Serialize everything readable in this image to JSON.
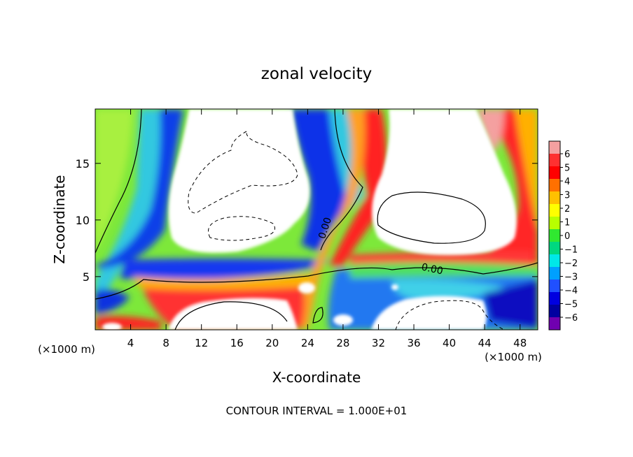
{
  "chart_data": {
    "type": "heatmap",
    "title": "zonal velocity",
    "xlabel": "X-coordinate",
    "ylabel": "Z-coordinate",
    "x_unit_left": "(×1000 m)",
    "x_unit_right": "(×1000 m)",
    "xlim": [
      0,
      50
    ],
    "ylim": [
      0.3,
      19.8
    ],
    "x_ticks": [
      4,
      8,
      12,
      16,
      20,
      24,
      28,
      32,
      36,
      40,
      44,
      48
    ],
    "y_ticks": [
      5,
      10,
      15
    ],
    "colorbar": {
      "min": -6,
      "max": 6,
      "ticks": [
        "6",
        "5",
        "4",
        "3",
        "2",
        "1",
        "0",
        "−1",
        "−2",
        "−3",
        "−4",
        "−5",
        "−6"
      ],
      "colors": [
        "#f4a0a0",
        "#ff3030",
        "#ff0000",
        "#ff7000",
        "#ffc000",
        "#ffff00",
        "#b8ff00",
        "#30e830",
        "#00d880",
        "#00e8e8",
        "#00a0ff",
        "#2050ff",
        "#0000e0",
        "#0000a0",
        "#7000b0"
      ]
    },
    "contour_labels": [
      {
        "text": "0.00",
        "x": 26.3,
        "y": 9.2
      },
      {
        "text": "0.00",
        "x": 38.0,
        "y": 5.4
      }
    ],
    "footer": "CONTOUR INTERVAL = 1.000E+01"
  }
}
